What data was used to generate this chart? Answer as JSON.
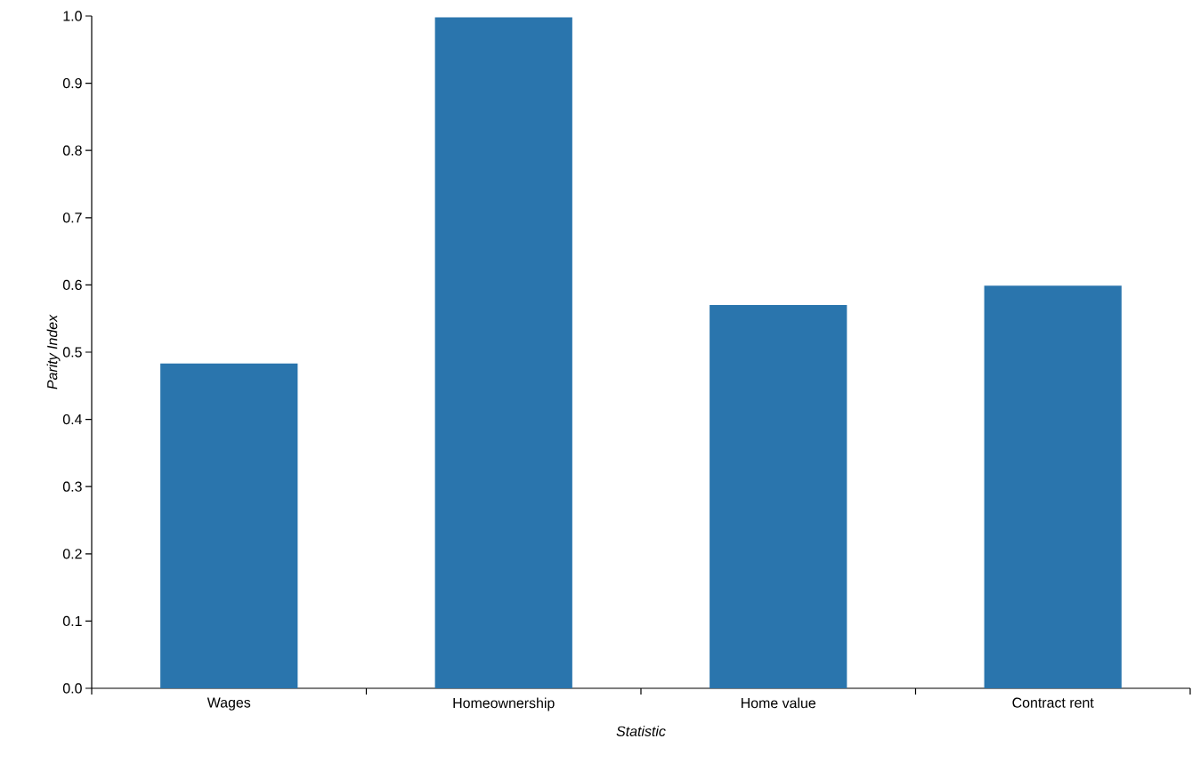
{
  "chart_data": {
    "type": "bar",
    "xlabel": "Statistic",
    "ylabel": "Parity Index",
    "categories": [
      "Wages",
      "Homeownership",
      "Home value",
      "Contract rent"
    ],
    "values": [
      0.483,
      0.998,
      0.57,
      0.599
    ],
    "color": "#2a75ad",
    "ylim": [
      0,
      1.0
    ],
    "yticks": [
      {
        "value": 0,
        "label": "0.0"
      },
      {
        "value": 0.1,
        "label": "0.1"
      },
      {
        "value": 0.2,
        "label": "0.2"
      },
      {
        "value": 0.3,
        "label": "0.3"
      },
      {
        "value": 0.4,
        "label": "0.4"
      },
      {
        "value": 0.5,
        "label": "0.5"
      },
      {
        "value": 0.6,
        "label": "0.6"
      },
      {
        "value": 0.7,
        "label": "0.7"
      },
      {
        "value": 0.8,
        "label": "0.8"
      },
      {
        "value": 0.9,
        "label": "0.9"
      },
      {
        "value": 1.0,
        "label": "1.0"
      }
    ]
  }
}
